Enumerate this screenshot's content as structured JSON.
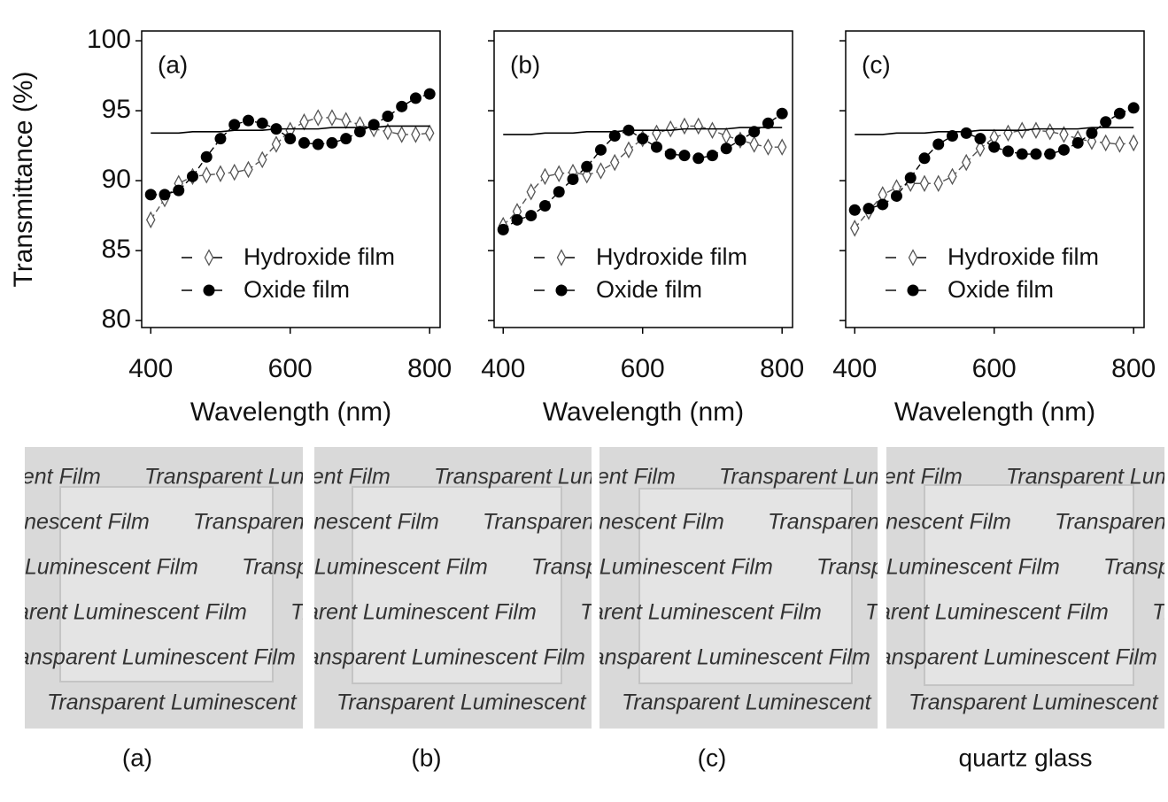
{
  "chart_data": [
    {
      "type": "line",
      "panel_label": "(a)",
      "x_label": "Wavelength (nm)",
      "y_label": "Transmittance (%)",
      "x": [
        400,
        420,
        440,
        460,
        480,
        500,
        520,
        540,
        560,
        580,
        600,
        620,
        640,
        660,
        680,
        700,
        720,
        740,
        760,
        780,
        800
      ],
      "xlim": [
        387,
        815
      ],
      "xticks": [
        400,
        600,
        800
      ],
      "ylim": [
        79.5,
        100.7
      ],
      "yticks": [
        80,
        85,
        90,
        95,
        100
      ],
      "show_ytick_labels": true,
      "series": [
        {
          "name": "Hydroxide film",
          "color": "#555555",
          "marker": "diamond",
          "dashed": true,
          "values": [
            87.2,
            88.7,
            89.8,
            90.3,
            90.4,
            90.5,
            90.6,
            90.8,
            91.5,
            92.6,
            93.6,
            94.2,
            94.5,
            94.5,
            94.3,
            94.0,
            93.7,
            93.5,
            93.3,
            93.3,
            93.4
          ]
        },
        {
          "name": "Oxide film",
          "color": "#000000",
          "marker": "circle",
          "dashed": true,
          "values": [
            89.0,
            89.0,
            89.3,
            90.3,
            91.7,
            93.0,
            94.0,
            94.3,
            94.1,
            93.7,
            93.0,
            92.7,
            92.6,
            92.7,
            93.0,
            93.5,
            94.0,
            94.6,
            95.3,
            95.9,
            96.2
          ]
        },
        {
          "color": "#000000",
          "marker": "none",
          "dashed": false,
          "values": [
            93.4,
            93.4,
            93.4,
            93.5,
            93.5,
            93.5,
            93.6,
            93.6,
            93.6,
            93.7,
            93.7,
            93.7,
            93.7,
            93.8,
            93.8,
            93.8,
            93.8,
            93.9,
            93.9,
            93.9,
            93.9
          ]
        }
      ]
    },
    {
      "type": "line",
      "panel_label": "(b)",
      "x_label": "Wavelength (nm)",
      "x": [
        400,
        420,
        440,
        460,
        480,
        500,
        520,
        540,
        560,
        580,
        600,
        620,
        640,
        660,
        680,
        700,
        720,
        740,
        760,
        780,
        800
      ],
      "xlim": [
        387,
        815
      ],
      "xticks": [
        400,
        600,
        800
      ],
      "ylim": [
        79.5,
        100.7
      ],
      "yticks": [
        80,
        85,
        90,
        95,
        100
      ],
      "show_ytick_labels": false,
      "series": [
        {
          "name": "Hydroxide film",
          "color": "#555555",
          "marker": "diamond",
          "dashed": true,
          "values": [
            86.8,
            87.8,
            89.2,
            90.3,
            90.5,
            90.6,
            90.4,
            90.7,
            91.3,
            92.2,
            93.0,
            93.4,
            93.7,
            93.9,
            93.9,
            93.6,
            93.2,
            92.9,
            92.6,
            92.4,
            92.4
          ]
        },
        {
          "name": "Oxide film",
          "color": "#000000",
          "marker": "circle",
          "dashed": true,
          "values": [
            86.5,
            87.2,
            87.5,
            88.2,
            89.2,
            90.1,
            91.0,
            92.2,
            93.2,
            93.6,
            93.0,
            92.4,
            91.9,
            91.8,
            91.6,
            91.8,
            92.3,
            92.9,
            93.5,
            94.1,
            94.8
          ]
        },
        {
          "color": "#000000",
          "marker": "none",
          "dashed": false,
          "values": [
            93.3,
            93.3,
            93.3,
            93.4,
            93.4,
            93.4,
            93.5,
            93.5,
            93.5,
            93.6,
            93.6,
            93.6,
            93.6,
            93.7,
            93.7,
            93.7,
            93.7,
            93.8,
            93.8,
            93.8,
            93.8
          ]
        }
      ]
    },
    {
      "type": "line",
      "panel_label": "(c)",
      "x_label": "Wavelength (nm)",
      "x": [
        400,
        420,
        440,
        460,
        480,
        500,
        520,
        540,
        560,
        580,
        600,
        620,
        640,
        660,
        680,
        700,
        720,
        740,
        760,
        780,
        800
      ],
      "xlim": [
        387,
        815
      ],
      "xticks": [
        400,
        600,
        800
      ],
      "ylim": [
        79.5,
        100.7
      ],
      "yticks": [
        80,
        85,
        90,
        95,
        100
      ],
      "show_ytick_labels": false,
      "series": [
        {
          "name": "Hydroxide film",
          "color": "#555555",
          "marker": "diamond",
          "dashed": true,
          "values": [
            86.6,
            87.8,
            89.0,
            89.5,
            89.8,
            89.8,
            89.8,
            90.3,
            91.3,
            92.3,
            93.1,
            93.4,
            93.6,
            93.6,
            93.5,
            93.3,
            93.0,
            92.8,
            92.7,
            92.6,
            92.7
          ]
        },
        {
          "name": "Oxide film",
          "color": "#000000",
          "marker": "circle",
          "dashed": true,
          "values": [
            87.9,
            88.0,
            88.3,
            88.9,
            90.2,
            91.6,
            92.6,
            93.2,
            93.4,
            93.0,
            92.4,
            92.1,
            91.9,
            91.9,
            91.9,
            92.2,
            92.7,
            93.4,
            94.2,
            94.8,
            95.2
          ]
        },
        {
          "color": "#000000",
          "marker": "none",
          "dashed": false,
          "values": [
            93.3,
            93.3,
            93.3,
            93.4,
            93.4,
            93.4,
            93.5,
            93.5,
            93.5,
            93.6,
            93.6,
            93.6,
            93.6,
            93.7,
            93.7,
            93.7,
            93.7,
            93.8,
            93.8,
            93.8,
            93.8
          ]
        }
      ]
    }
  ],
  "photos": {
    "text": "Transparent Luminescent Film",
    "captions": [
      "(a)",
      "(b)",
      "(c)",
      "quartz glass"
    ]
  }
}
